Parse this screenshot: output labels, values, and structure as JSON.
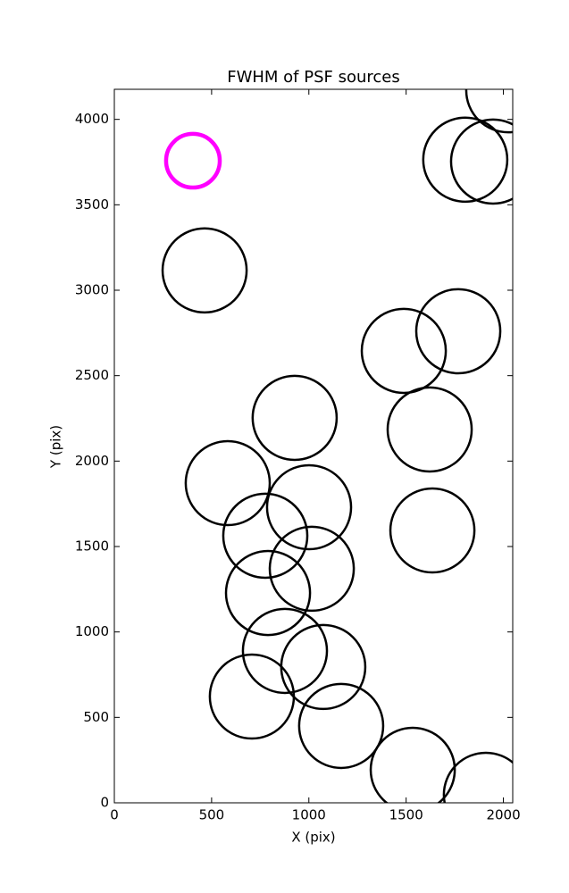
{
  "chart_data": {
    "type": "scatter",
    "title": "FWHM of PSF sources",
    "x_label": "X (pix)",
    "y_label": "Y (pix)",
    "xlim": [
      0,
      2048
    ],
    "ylim": [
      0,
      4176
    ],
    "xticks": [
      0,
      500,
      1000,
      1500,
      2000
    ],
    "yticks": [
      0,
      500,
      1000,
      1500,
      2000,
      2500,
      3000,
      3500,
      4000
    ],
    "series": [
      {
        "color": "#000000",
        "x": [
          2025,
          1804,
          1947,
          464,
          1488,
          1768,
          927,
          1621,
          583,
          1001,
          776,
          1635,
          1015,
          790,
          877,
          1074,
          707,
          1166,
          1534,
          1910
        ],
        "y": [
          4170,
          3764,
          3753,
          3116,
          2645,
          2760,
          2253,
          2185,
          1871,
          1730,
          1563,
          1594,
          1370,
          1228,
          889,
          795,
          622,
          450,
          193,
          47
        ],
        "sizes": [
          216,
          216,
          216,
          216,
          216,
          216,
          216,
          216,
          216,
          216,
          216,
          216,
          216,
          216,
          216,
          216,
          216,
          216,
          216,
          216
        ]
      },
      {
        "color": "#ff00ff",
        "x": [
          404
        ],
        "y": [
          3758
        ],
        "sizes": [
          138
        ]
      }
    ]
  }
}
